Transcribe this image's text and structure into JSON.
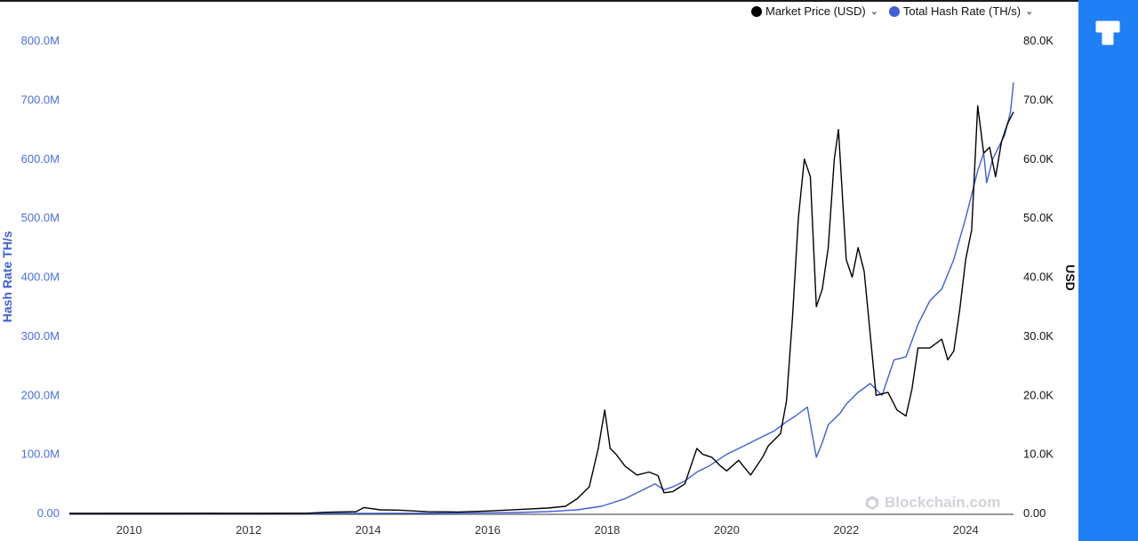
{
  "chart_data": {
    "type": "line",
    "legend": [
      {
        "label": "Market Price (USD)",
        "color": "#000000"
      },
      {
        "label": "Total Hash Rate (TH/s)",
        "color": "#3d5fd9"
      }
    ],
    "legend_position": "top-right",
    "grid": false,
    "xlim": [
      2009.0,
      2024.8
    ],
    "x_ticks": [
      "2010",
      "2012",
      "2014",
      "2016",
      "2018",
      "2020",
      "2022",
      "2024"
    ],
    "y_left": {
      "label": "Hash Rate TH/s",
      "color": "#3d5fd9",
      "lim": [
        0,
        800000000
      ],
      "ticks": [
        "0.00",
        "100.0M",
        "200.0M",
        "300.0M",
        "400.0M",
        "500.0M",
        "600.0M",
        "700.0M",
        "800.0M"
      ]
    },
    "y_right": {
      "label": "USD",
      "lim": [
        0,
        80000
      ],
      "ticks": [
        "0.00",
        "10.0K",
        "20.0K",
        "30.0K",
        "40.0K",
        "50.0K",
        "60.0K",
        "70.0K",
        "80.0K"
      ]
    },
    "series": [
      {
        "name": "Market Price (USD)",
        "axis": "right",
        "color": "#000000",
        "x": [
          2009.0,
          2010.5,
          2011.45,
          2011.6,
          2012.0,
          2013.0,
          2013.3,
          2013.8,
          2013.93,
          2014.2,
          2014.5,
          2015.0,
          2015.5,
          2016.0,
          2016.5,
          2017.0,
          2017.3,
          2017.5,
          2017.7,
          2017.85,
          2017.96,
          2018.05,
          2018.15,
          2018.3,
          2018.5,
          2018.7,
          2018.85,
          2018.95,
          2019.1,
          2019.3,
          2019.5,
          2019.6,
          2019.75,
          2019.9,
          2020.0,
          2020.2,
          2020.4,
          2020.6,
          2020.7,
          2020.9,
          2021.0,
          2021.1,
          2021.2,
          2021.3,
          2021.4,
          2021.5,
          2021.6,
          2021.7,
          2021.8,
          2021.87,
          2022.0,
          2022.1,
          2022.2,
          2022.3,
          2022.5,
          2022.7,
          2022.85,
          2023.0,
          2023.1,
          2023.2,
          2023.4,
          2023.6,
          2023.7,
          2023.8,
          2023.9,
          2024.0,
          2024.1,
          2024.2,
          2024.3,
          2024.4,
          2024.5,
          2024.6,
          2024.7,
          2024.8
        ],
        "values": [
          0,
          0,
          30,
          20,
          10,
          50,
          200,
          300,
          1000,
          600,
          550,
          280,
          240,
          400,
          650,
          900,
          1200,
          2500,
          4500,
          11000,
          17500,
          11000,
          10000,
          8000,
          6500,
          7000,
          6400,
          3500,
          3700,
          5000,
          11000,
          10000,
          9500,
          8000,
          7200,
          9000,
          6500,
          9500,
          11500,
          13500,
          19000,
          33000,
          50000,
          60000,
          57000,
          35000,
          38000,
          45000,
          60000,
          65000,
          43000,
          40000,
          45000,
          41000,
          20000,
          20500,
          17500,
          16500,
          21000,
          28000,
          28000,
          29500,
          26000,
          27500,
          34500,
          43000,
          48000,
          69000,
          61000,
          62000,
          57000,
          63000,
          66000,
          68000
        ]
      },
      {
        "name": "Total Hash Rate (TH/s)",
        "axis": "left",
        "color": "#3d5fd9",
        "x": [
          2009.0,
          2014.0,
          2015.0,
          2016.0,
          2016.5,
          2017.0,
          2017.5,
          2017.9,
          2018.0,
          2018.3,
          2018.6,
          2018.8,
          2018.95,
          2019.1,
          2019.3,
          2019.5,
          2019.7,
          2020.0,
          2020.3,
          2020.5,
          2020.8,
          2021.0,
          2021.15,
          2021.35,
          2021.5,
          2021.6,
          2021.7,
          2021.9,
          2022.0,
          2022.2,
          2022.4,
          2022.6,
          2022.8,
          2023.0,
          2023.2,
          2023.4,
          2023.6,
          2023.8,
          2024.0,
          2024.2,
          2024.3,
          2024.35,
          2024.45,
          2024.55,
          2024.65,
          2024.75,
          2024.8
        ],
        "values": [
          0,
          100000,
          300000,
          1000000,
          1500000,
          3000000,
          6000000,
          12000000,
          15000000,
          25000000,
          40000000,
          50000000,
          40000000,
          45000000,
          55000000,
          70000000,
          80000000,
          100000000,
          115000000,
          125000000,
          140000000,
          155000000,
          165000000,
          180000000,
          95000000,
          120000000,
          150000000,
          170000000,
          185000000,
          205000000,
          220000000,
          200000000,
          260000000,
          265000000,
          320000000,
          360000000,
          380000000,
          430000000,
          500000000,
          580000000,
          610000000,
          560000000,
          600000000,
          620000000,
          640000000,
          680000000,
          730000000
        ]
      }
    ]
  },
  "watermark": "Blockchain.com"
}
